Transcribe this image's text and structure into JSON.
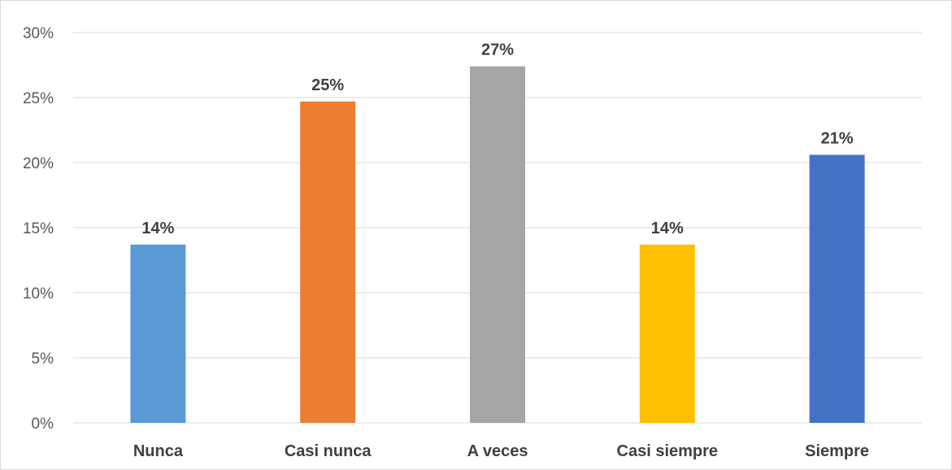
{
  "chart_data": {
    "type": "bar",
    "title": "",
    "xlabel": "",
    "ylabel": "",
    "categories": [
      "Nunca",
      "Casi nunca",
      "A veces",
      "Casi siempre",
      "Siempre"
    ],
    "values": [
      13.7,
      24.7,
      27.4,
      13.7,
      20.6
    ],
    "data_labels": [
      "14%",
      "25%",
      "27%",
      "14%",
      "21%"
    ],
    "colors": [
      "#5B9BD5",
      "#ED7D31",
      "#A5A5A5",
      "#FFC000",
      "#4472C4"
    ],
    "ylim": [
      0,
      30
    ],
    "yticks": [
      0,
      5,
      10,
      15,
      20,
      25,
      30
    ],
    "ytick_labels": [
      "0%",
      "5%",
      "10%",
      "15%",
      "20%",
      "25%",
      "30%"
    ],
    "grid": true,
    "legend": "none"
  }
}
